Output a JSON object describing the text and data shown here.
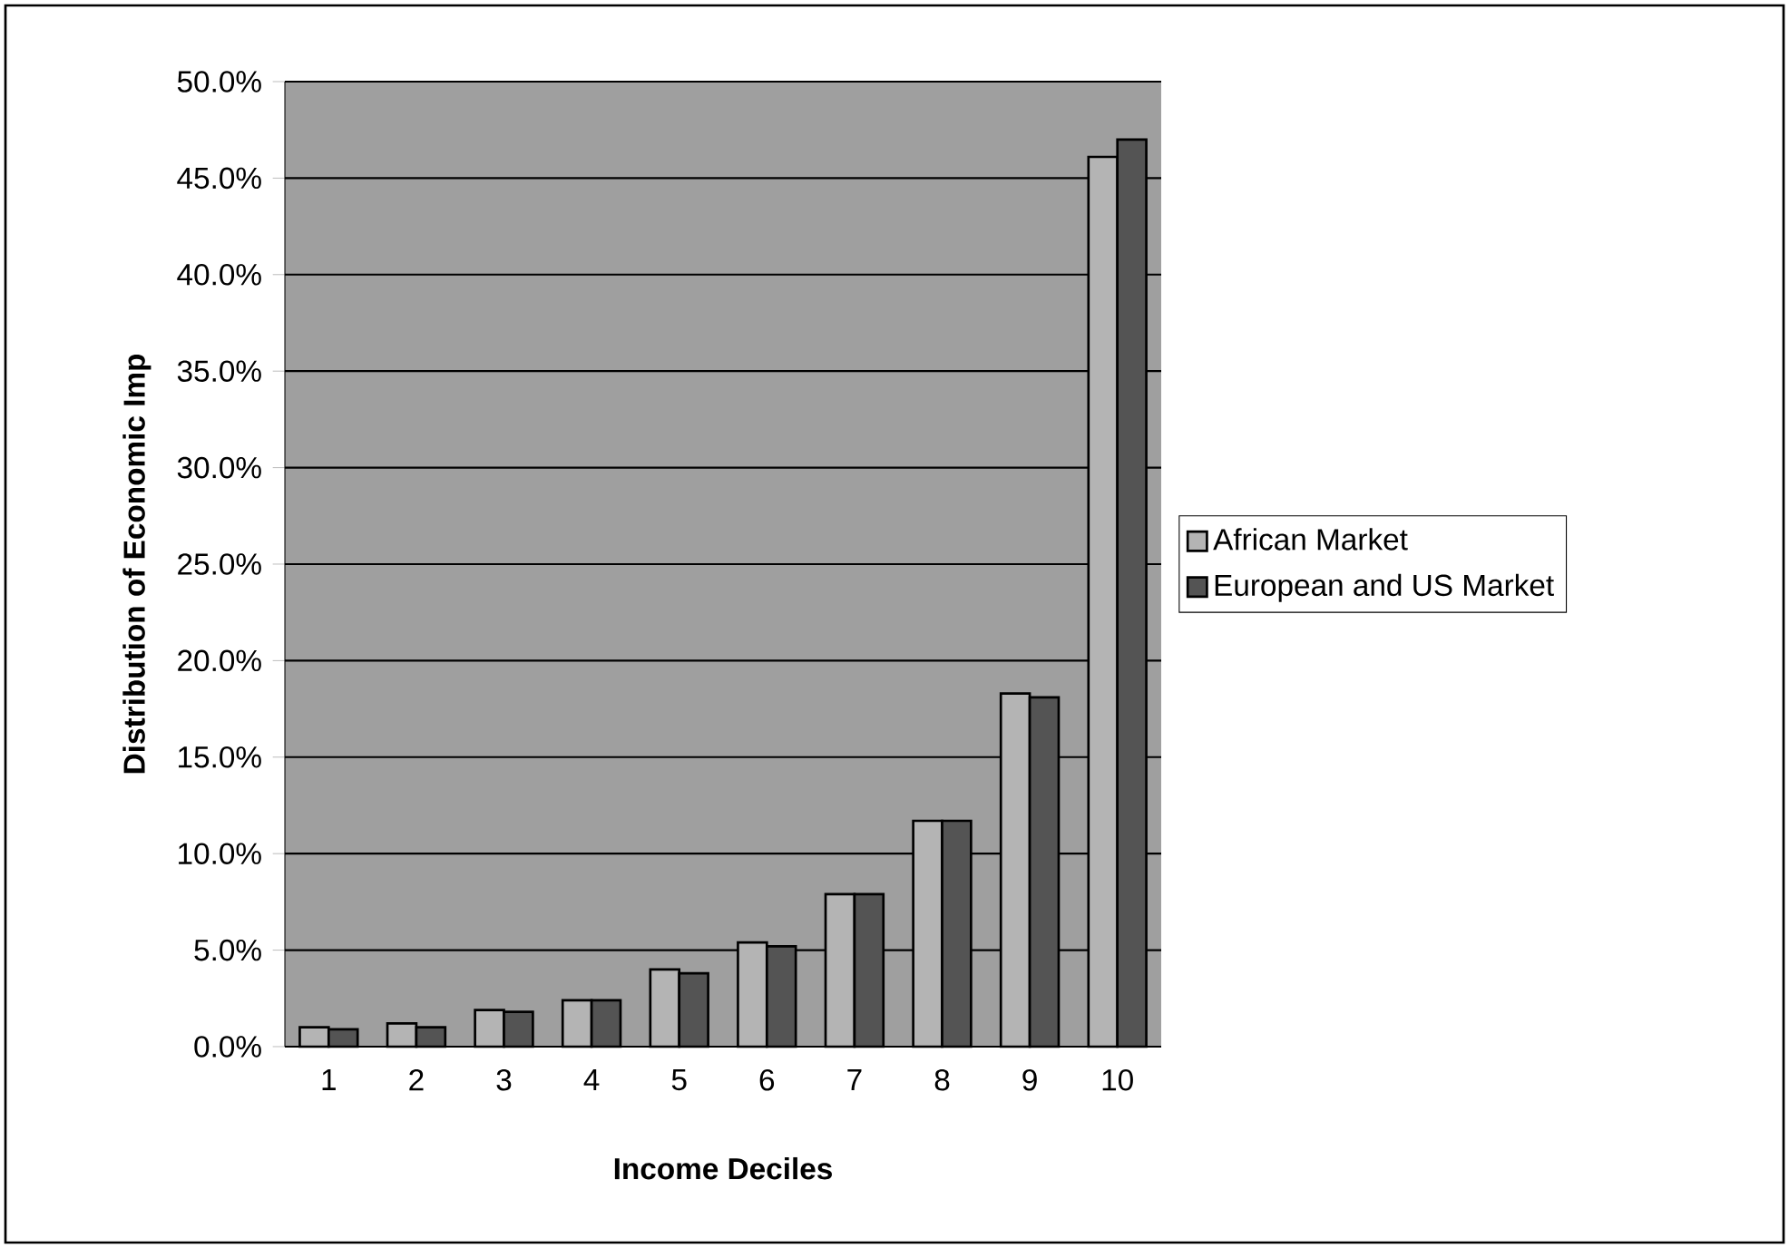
{
  "chart_data": {
    "type": "bar",
    "xlabel": "Income Deciles",
    "ylabel": "Distribution of Economic Imp",
    "categories": [
      "1",
      "2",
      "3",
      "4",
      "5",
      "6",
      "7",
      "8",
      "9",
      "10"
    ],
    "series": [
      {
        "name": "African Market",
        "color": "#b4b4b4",
        "values": [
          1.0,
          1.2,
          1.9,
          2.4,
          4.0,
          5.4,
          7.9,
          11.7,
          18.3,
          46.1
        ]
      },
      {
        "name": "European and US Market",
        "color": "#545454",
        "values": [
          0.9,
          1.0,
          1.8,
          2.4,
          3.8,
          5.2,
          7.9,
          11.7,
          18.1,
          47.0
        ]
      }
    ],
    "ylim": [
      0,
      50
    ],
    "yticks": [
      {
        "value": 0,
        "label": "0.0%"
      },
      {
        "value": 5,
        "label": "5.0%"
      },
      {
        "value": 10,
        "label": "10.0%"
      },
      {
        "value": 15,
        "label": "15.0%"
      },
      {
        "value": 20,
        "label": "20.0%"
      },
      {
        "value": 25,
        "label": "25.0%"
      },
      {
        "value": 30,
        "label": "30.0%"
      },
      {
        "value": 35,
        "label": "35.0%"
      },
      {
        "value": 40,
        "label": "40.0%"
      },
      {
        "value": 45,
        "label": "45.0%"
      },
      {
        "value": 50,
        "label": "50.0%"
      }
    ],
    "grid": "y",
    "legend": "right"
  }
}
